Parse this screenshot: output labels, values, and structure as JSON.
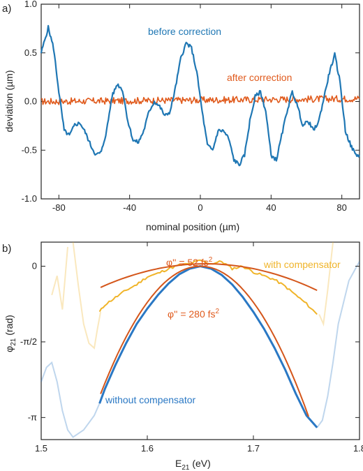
{
  "chart_data": [
    {
      "panel_label": "a)",
      "type": "line",
      "xlabel": "nominal position (µm)",
      "ylabel": "deviation (µm)",
      "xlim": [
        -90,
        90
      ],
      "ylim": [
        -1.0,
        1.0
      ],
      "xticks": [
        -80,
        -40,
        0,
        40,
        80
      ],
      "xtick_labels": [
        "-80",
        "-40",
        "0",
        "40",
        "80"
      ],
      "yticks": [
        1.0,
        0.5,
        0.0,
        -0.5,
        -1.0
      ],
      "ytick_labels": [
        "1.0",
        "0.5",
        "0.0",
        "-0.5",
        "-1.0"
      ],
      "grid": false,
      "series": [
        {
          "name": "before correction",
          "color": "#1f77b4",
          "x": [
            -90,
            -86,
            -83,
            -80,
            -77,
            -74,
            -71,
            -68,
            -65,
            -62,
            -59,
            -56,
            -53,
            -50,
            -47,
            -44,
            -41,
            -38,
            -35,
            -32,
            -29,
            -26,
            -23,
            -20,
            -17,
            -14,
            -11,
            -8,
            -5,
            -2,
            1,
            4,
            7,
            10,
            13,
            16,
            19,
            22,
            25,
            28,
            31,
            34,
            37,
            40,
            43,
            46,
            49,
            52,
            55,
            58,
            61,
            64,
            67,
            70,
            73,
            76,
            79,
            82,
            85,
            88,
            90
          ],
          "y": [
            0.5,
            0.76,
            0.55,
            0.1,
            -0.3,
            -0.35,
            -0.24,
            -0.22,
            -0.32,
            -0.45,
            -0.55,
            -0.52,
            -0.3,
            0.05,
            0.18,
            0.12,
            -0.2,
            -0.4,
            -0.42,
            -0.3,
            -0.1,
            0.0,
            -0.05,
            -0.15,
            -0.1,
            0.15,
            0.45,
            0.6,
            0.55,
            0.3,
            -0.1,
            -0.45,
            -0.5,
            -0.3,
            -0.3,
            -0.38,
            -0.6,
            -0.65,
            -0.55,
            -0.2,
            0.05,
            0.1,
            -0.1,
            -0.55,
            -0.6,
            -0.35,
            -0.1,
            0.1,
            -0.05,
            -0.25,
            -0.2,
            -0.3,
            -0.2,
            0.05,
            0.3,
            0.48,
            0.2,
            -0.3,
            -0.45,
            -0.55,
            -0.55
          ]
        },
        {
          "name": "after correction",
          "color": "#e05a1c",
          "x": [
            -90,
            90
          ],
          "y": [
            0.0,
            0.03
          ]
        }
      ]
    },
    {
      "panel_label": "b)",
      "type": "line",
      "xlabel": "E",
      "xlabel_sub": "21",
      "xlabel_unit": " (eV)",
      "ylabel": "φ",
      "ylabel_sub": "21",
      "ylabel_unit": " (rad)",
      "xlim": [
        1.5,
        1.8
      ],
      "ylim": [
        -3.6,
        0.5
      ],
      "xticks": [
        1.5,
        1.6,
        1.7,
        1.8
      ],
      "xtick_labels": [
        "1.5",
        "1.6",
        "1.7",
        "1.8"
      ],
      "yticks": [
        0,
        -1.5708,
        -3.1416
      ],
      "ytick_labels": [
        "0",
        "-π/2",
        "-π"
      ],
      "grid": false,
      "series": [
        {
          "name": "with compensator",
          "color": "#f0b429",
          "x": [
            1.555,
            1.56,
            1.57,
            1.58,
            1.59,
            1.6,
            1.61,
            1.62,
            1.63,
            1.64,
            1.65,
            1.66,
            1.67,
            1.68,
            1.69,
            1.7,
            1.71,
            1.72,
            1.73,
            1.74,
            1.75,
            1.76
          ],
          "y": [
            -0.95,
            -0.8,
            -0.65,
            -0.5,
            -0.38,
            -0.22,
            -0.15,
            -0.05,
            0.02,
            0.05,
            0.12,
            0.05,
            0.1,
            -0.05,
            0.0,
            -0.12,
            -0.2,
            -0.28,
            -0.42,
            -0.6,
            -0.78,
            -1.0
          ]
        },
        {
          "name": "without compensator",
          "color": "#2a78c4",
          "x": [
            1.555,
            1.56,
            1.57,
            1.58,
            1.59,
            1.6,
            1.61,
            1.62,
            1.63,
            1.64,
            1.65,
            1.66,
            1.67,
            1.68,
            1.69,
            1.7,
            1.71,
            1.72,
            1.73,
            1.74,
            1.75,
            1.76
          ],
          "y": [
            -2.85,
            -2.55,
            -2.05,
            -1.6,
            -1.2,
            -0.88,
            -0.6,
            -0.36,
            -0.17,
            -0.05,
            0.0,
            -0.05,
            -0.18,
            -0.38,
            -0.64,
            -0.95,
            -1.3,
            -1.7,
            -2.15,
            -2.65,
            -3.1,
            -3.35
          ]
        }
      ],
      "annotations": [
        {
          "text": "φ'' = 52 fs",
          "sup": "2",
          "color": "#e05a1c"
        },
        {
          "text": "φ'' = 280 fs",
          "sup": "2",
          "color": "#e05a1c"
        }
      ],
      "legend_labels": {
        "with": "with compensator",
        "without": "without compensator"
      }
    }
  ]
}
